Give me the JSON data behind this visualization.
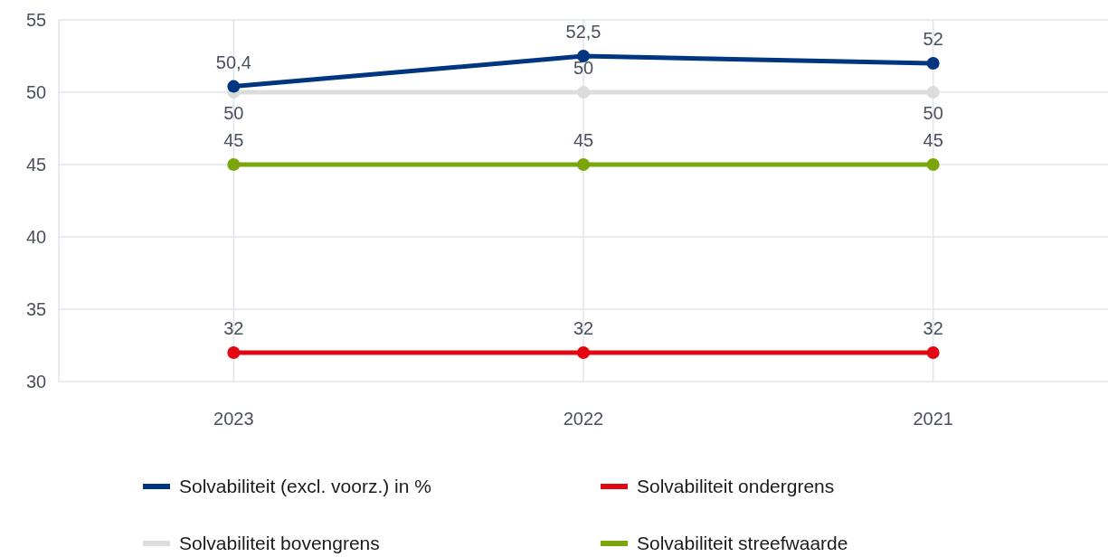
{
  "chart_data": {
    "type": "line",
    "categories": [
      "2023",
      "2022",
      "2021"
    ],
    "series": [
      {
        "name": "Solvabiliteit (excl. voorz.) in %",
        "color": "#003580",
        "values": [
          50.4,
          52.5,
          52
        ],
        "value_labels": [
          "50,4",
          "52,5",
          "52"
        ]
      },
      {
        "name": "Solvabiliteit ondergrens",
        "color": "#e30613",
        "values": [
          32,
          32,
          32
        ],
        "value_labels": [
          "32",
          "32",
          "32"
        ]
      },
      {
        "name": "Solvabiliteit bovengrens",
        "color": "#dcdcdc",
        "values": [
          50,
          50,
          50
        ],
        "value_labels": [
          "50",
          "50",
          "50"
        ]
      },
      {
        "name": "Solvabiliteit streefwaarde",
        "color": "#7aa60c",
        "values": [
          45,
          45,
          45
        ],
        "value_labels": [
          "45",
          "45",
          "45"
        ]
      }
    ],
    "ylim": [
      30,
      55
    ],
    "yticks": [
      30,
      35,
      40,
      45,
      50,
      55
    ],
    "grid": true,
    "legend": "bottom",
    "marker": "circle",
    "line_style": "solid"
  }
}
